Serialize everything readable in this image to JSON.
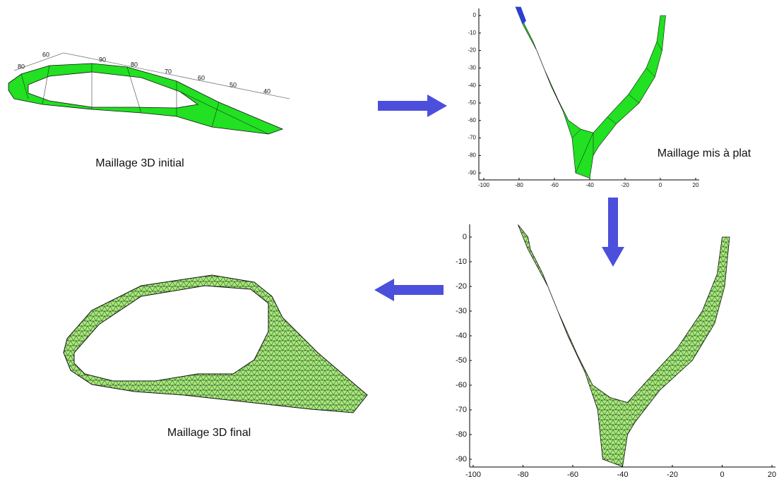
{
  "panels": {
    "initial_3d": {
      "axis_labels": [
        80,
        60,
        90,
        80,
        70,
        60,
        50,
        40
      ],
      "caption": "Maillage 3D initial"
    },
    "flattened": {
      "yticks": [
        0,
        -10,
        -20,
        -30,
        -40,
        -50,
        -60,
        -70,
        -80,
        -90
      ],
      "xticks": [
        -100,
        -80,
        -60,
        -40,
        -20,
        0,
        20
      ],
      "caption": "Maillage mis à plat"
    },
    "remeshed_flat": {
      "yticks": [
        0,
        -10,
        -20,
        -30,
        -40,
        -50,
        -60,
        -70,
        -80,
        -90
      ],
      "xticks": [
        -100,
        -80,
        -60,
        -40,
        -20,
        0,
        20
      ]
    },
    "final_3d": {
      "caption": "Maillage 3D final"
    }
  }
}
